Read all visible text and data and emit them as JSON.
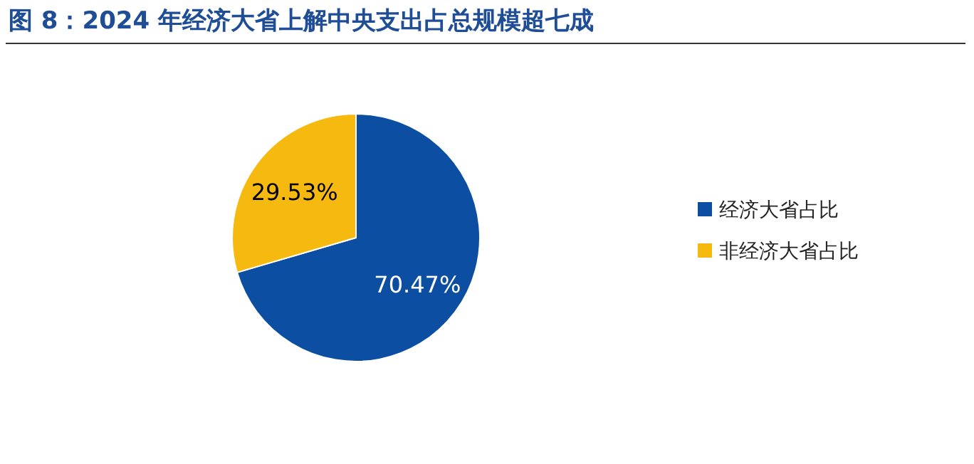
{
  "chart_data": {
    "type": "pie",
    "title": "图 8：2024 年经济大省上解中央支出占总规模超七成",
    "categories": [
      "经济大省占比",
      "非经济大省占比"
    ],
    "values": [
      70.47,
      29.53
    ],
    "colors": [
      "#0b4ea2",
      "#f6b90f"
    ],
    "value_labels": [
      "70.47%",
      "29.53%"
    ],
    "legend": "right"
  }
}
